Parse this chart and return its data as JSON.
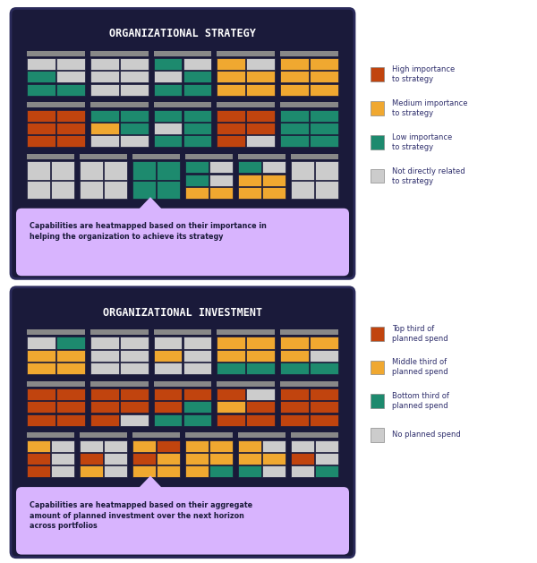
{
  "bg_color": "#0D0D2B",
  "panel_bg": "#1A1A3E",
  "title1": "ORGANIZATIONAL STRATEGY",
  "title2": "ORGANIZATIONAL INVESTMENT",
  "caption1": "Capabilities are heatmapped based on their importance in\nhelping the organization to achieve its strategy",
  "caption2": "Capabilities are heatmapped based on their aggregate\namount of planned investment over the next horizon\nacross portfolios",
  "colors": {
    "high": "#C1440E",
    "medium": "#F0A830",
    "low": "#1D8A6E",
    "none": "#CCCCCC",
    "header": "#888888"
  },
  "legend1": [
    {
      "color": "#C1440E",
      "label": "High importance\nto strategy"
    },
    {
      "color": "#F0A830",
      "label": "Medium importance\nto strategy"
    },
    {
      "color": "#1D8A6E",
      "label": "Low importance\nto strategy"
    },
    {
      "color": "#CCCCCC",
      "label": "Not directly related\nto strategy"
    }
  ],
  "legend2": [
    {
      "color": "#C1440E",
      "label": "Top third of\nplanned spend"
    },
    {
      "color": "#F0A830",
      "label": "Middle third of\nplanned spend"
    },
    {
      "color": "#1D8A6E",
      "label": "Bottom third of\nplanned spend"
    },
    {
      "color": "#CCCCCC",
      "label": "No planned spend"
    }
  ],
  "strategy_grid": [
    [
      [
        [
          "none",
          "none"
        ],
        [
          "low",
          "none"
        ],
        [
          "low",
          "low"
        ]
      ],
      [
        [
          "none",
          "none"
        ],
        [
          "none",
          "none"
        ],
        [
          "none",
          "none"
        ]
      ],
      [
        [
          "low",
          "none"
        ],
        [
          "none",
          "low"
        ],
        [
          "low",
          "low"
        ]
      ],
      [
        [
          "medium",
          "none"
        ],
        [
          "medium",
          "medium"
        ],
        [
          "medium",
          "medium"
        ]
      ],
      [
        [
          "medium",
          "medium"
        ],
        [
          "medium",
          "medium"
        ],
        [
          "medium",
          "medium"
        ]
      ]
    ],
    [
      [
        [
          "high",
          "high"
        ],
        [
          "high",
          "high"
        ],
        [
          "high",
          "high"
        ]
      ],
      [
        [
          "low",
          "low"
        ],
        [
          "medium",
          "low"
        ],
        [
          "none",
          "none"
        ]
      ],
      [
        [
          "low",
          "low"
        ],
        [
          "none",
          "low"
        ],
        [
          "low",
          "low"
        ]
      ],
      [
        [
          "high",
          "high"
        ],
        [
          "high",
          "high"
        ],
        [
          "high",
          "none"
        ]
      ],
      [
        [
          "low",
          "low"
        ],
        [
          "low",
          "low"
        ],
        [
          "low",
          "low"
        ]
      ]
    ],
    [
      [
        [
          "none",
          "none"
        ],
        [
          "none",
          "none"
        ]
      ],
      [
        [
          "none",
          "none"
        ],
        [
          "none",
          "none"
        ]
      ],
      [
        [
          "low",
          "low"
        ],
        [
          "low",
          "low"
        ]
      ],
      [
        [
          "low",
          "none"
        ],
        [
          "low",
          "none"
        ],
        [
          "medium",
          "medium"
        ]
      ],
      [
        [
          "low",
          "none"
        ],
        [
          "medium",
          "medium"
        ],
        [
          "medium",
          "medium"
        ]
      ],
      [
        [
          "none",
          "none"
        ],
        [
          "none",
          "none"
        ]
      ]
    ]
  ],
  "investment_grid": [
    [
      [
        [
          "none",
          "low"
        ],
        [
          "medium",
          "medium"
        ],
        [
          "medium",
          "medium"
        ]
      ],
      [
        [
          "none",
          "none"
        ],
        [
          "none",
          "none"
        ],
        [
          "none",
          "none"
        ]
      ],
      [
        [
          "none",
          "none"
        ],
        [
          "medium",
          "none"
        ],
        [
          "none",
          "none"
        ]
      ],
      [
        [
          "medium",
          "medium"
        ],
        [
          "medium",
          "medium"
        ],
        [
          "low",
          "low"
        ]
      ],
      [
        [
          "medium",
          "medium"
        ],
        [
          "medium",
          "none"
        ],
        [
          "low",
          "low"
        ]
      ]
    ],
    [
      [
        [
          "high",
          "high"
        ],
        [
          "high",
          "high"
        ],
        [
          "high",
          "high"
        ]
      ],
      [
        [
          "high",
          "high"
        ],
        [
          "high",
          "high"
        ],
        [
          "high",
          "none"
        ]
      ],
      [
        [
          "high",
          "high"
        ],
        [
          "high",
          "low"
        ],
        [
          "low",
          "low"
        ]
      ],
      [
        [
          "high",
          "none"
        ],
        [
          "medium",
          "high"
        ],
        [
          "high",
          "high"
        ]
      ],
      [
        [
          "high",
          "high"
        ],
        [
          "high",
          "high"
        ],
        [
          "high",
          "high"
        ]
      ]
    ],
    [
      [
        [
          "medium",
          "none"
        ],
        [
          "high",
          "none"
        ],
        [
          "high",
          "none"
        ]
      ],
      [
        [
          "none",
          "none"
        ],
        [
          "high",
          "none"
        ],
        [
          "medium",
          "none"
        ]
      ],
      [
        [
          "medium",
          "high"
        ],
        [
          "high",
          "medium"
        ],
        [
          "medium",
          "medium"
        ]
      ],
      [
        [
          "medium",
          "medium"
        ],
        [
          "medium",
          "medium"
        ],
        [
          "medium",
          "low"
        ]
      ],
      [
        [
          "medium",
          "none"
        ],
        [
          "medium",
          "medium"
        ],
        [
          "low",
          "none"
        ]
      ],
      [
        [
          "none",
          "none"
        ],
        [
          "high",
          "none"
        ],
        [
          "none",
          "low"
        ]
      ]
    ]
  ]
}
